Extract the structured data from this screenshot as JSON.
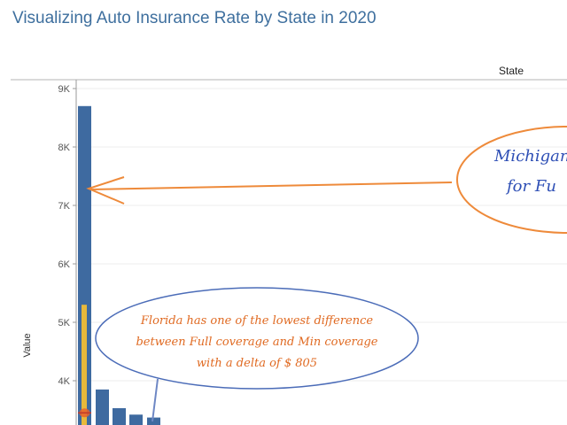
{
  "title": "Visualizing Auto Insurance Rate by State in 2020",
  "column_header": "State",
  "chart_data": {
    "type": "bar",
    "ylabel": "Value",
    "ylim": [
      3300,
      9000
    ],
    "yticks": [
      {
        "value": 4000,
        "label": "4K"
      },
      {
        "value": 5000,
        "label": "5K"
      },
      {
        "value": 6000,
        "label": "6K"
      },
      {
        "value": 7000,
        "label": "7K"
      },
      {
        "value": 8000,
        "label": "8K"
      },
      {
        "value": 9000,
        "label": "9K"
      }
    ],
    "grid": true,
    "series": [
      {
        "values": [
          8700,
          3850,
          3530,
          3420,
          3370
        ],
        "color": "#3e6aa0"
      },
      {
        "values": [
          5300
        ],
        "color": "#e8b93b"
      }
    ],
    "marker": {
      "value": 3450,
      "color": "#e8622c"
    }
  },
  "annotations": {
    "michigan": {
      "line1": "Michigan",
      "line2": "for Fu"
    },
    "florida": {
      "line1": "Florida has one of the lowest difference",
      "line2": "between Full coverage and Min coverage",
      "line3": "with a delta of $ 805"
    }
  }
}
